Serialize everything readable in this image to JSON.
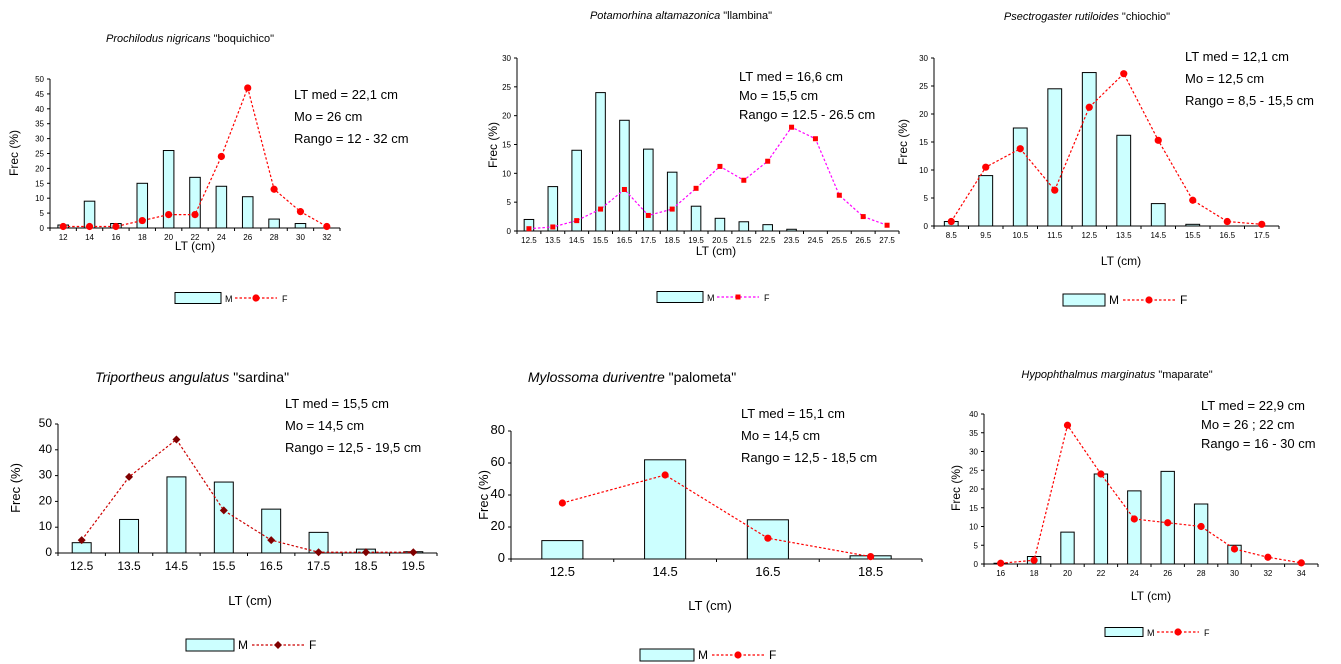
{
  "chart_data": [
    {
      "type": "bar",
      "title_italic": "Prochilodus nigricans",
      "title_common": "\"boquichico\"",
      "xlabel": "LT (cm)",
      "ylabel": "Frec (%)",
      "categories": [
        "12",
        "14",
        "16",
        "18",
        "20",
        "22",
        "24",
        "26",
        "28",
        "30",
        "32"
      ],
      "ylim": [
        0,
        50
      ],
      "yticks": [
        "0",
        "5",
        "10",
        "15",
        "20",
        "25",
        "30",
        "35",
        "40",
        "45",
        "50"
      ],
      "series": [
        {
          "name": "M",
          "kind": "bar",
          "values": [
            1,
            9,
            1.5,
            15,
            26,
            17,
            14,
            10.5,
            3,
            1.5,
            0
          ]
        },
        {
          "name": "F",
          "kind": "line",
          "marker": "circle",
          "values": [
            0.5,
            0.5,
            0.5,
            2.5,
            4.5,
            4.5,
            24,
            47,
            13,
            5.5,
            0.5
          ]
        }
      ],
      "stats": [
        "LT med = 22,1 cm",
        "Mo =  26 cm",
        "Rango = 12 - 32 cm"
      ]
    },
    {
      "type": "bar",
      "title_italic": "Potamorhina altamazonica",
      "title_common": "\"llambina\"",
      "xlabel": "LT (cm)",
      "ylabel": "Frec (%)",
      "categories": [
        "12.5",
        "13.5",
        "14.5",
        "15.5",
        "16.5",
        "17.5",
        "18.5",
        "19.5",
        "20.5",
        "21.5",
        "22.5",
        "23.5",
        "24.5",
        "25.5",
        "26.5",
        "27.5"
      ],
      "ylim": [
        0,
        30
      ],
      "yticks": [
        "0",
        "5",
        "10",
        "15",
        "20",
        "25",
        "30"
      ],
      "series": [
        {
          "name": "M",
          "kind": "bar",
          "values": [
            2,
            7.7,
            14,
            24,
            19.2,
            14.2,
            10.2,
            4.3,
            2.2,
            1.6,
            1.1,
            0.3,
            0,
            0,
            0,
            0
          ]
        },
        {
          "name": "F",
          "kind": "line",
          "marker": "square",
          "values": [
            0.4,
            0.7,
            1.8,
            3.8,
            7.2,
            2.7,
            3.8,
            7.4,
            11.2,
            8.8,
            12.1,
            18,
            16,
            6.2,
            2.5,
            1
          ]
        }
      ],
      "stats": [
        "LT med =  16,6 cm",
        "Mo = 15,5 cm",
        "Rango =  12.5 - 26.5 cm"
      ]
    },
    {
      "type": "bar",
      "title_italic": "Psectrogaster rutiloides",
      "title_common": "\"chiochio\"",
      "xlabel": "LT (cm)",
      "ylabel": "Frec (%)",
      "categories": [
        "8.5",
        "9.5",
        "10.5",
        "11.5",
        "12.5",
        "13.5",
        "14.5",
        "15.5",
        "16.5",
        "17.5"
      ],
      "ylim": [
        0,
        30
      ],
      "yticks": [
        "0",
        "5",
        "10",
        "15",
        "20",
        "25",
        "30"
      ],
      "series": [
        {
          "name": "M",
          "kind": "bar",
          "values": [
            0.8,
            9,
            17.5,
            24.5,
            27.4,
            16.2,
            4,
            0.3,
            0,
            0
          ]
        },
        {
          "name": "F",
          "kind": "line",
          "marker": "circle",
          "values": [
            0.8,
            10.5,
            13.8,
            6.4,
            21.2,
            27.2,
            15.3,
            4.6,
            0.8,
            0.3
          ]
        }
      ],
      "stats": [
        "LT med = 12,1 cm",
        "Mo =  12,5 cm",
        "Rango = 8,5 - 15,5 cm"
      ]
    },
    {
      "type": "bar",
      "title_italic": "Triportheus angulatus",
      "title_common": "\"sardina\"",
      "xlabel": "LT (cm)",
      "ylabel": "Frec (%)",
      "categories": [
        "12.5",
        "13.5",
        "14.5",
        "15.5",
        "16.5",
        "17.5",
        "18.5",
        "19.5"
      ],
      "ylim": [
        0,
        50
      ],
      "yticks": [
        "0",
        "10",
        "20",
        "30",
        "40",
        "50"
      ],
      "series": [
        {
          "name": "M",
          "kind": "bar",
          "values": [
            4,
            13,
            29.5,
            27.5,
            17,
            8,
            1.5,
            0.5
          ]
        },
        {
          "name": "F",
          "kind": "line",
          "marker": "diamond",
          "values": [
            5,
            29.5,
            44,
            16.5,
            5,
            0.3,
            0.3,
            0.3
          ]
        }
      ],
      "stats": [
        "LT med = 15,5 cm",
        "Mo =  14,5 cm",
        "Rango = 12,5 - 19,5 cm"
      ]
    },
    {
      "type": "bar",
      "title_italic": "Mylossoma duriventre",
      "title_common": "\"palometa\"",
      "xlabel": "LT (cm)",
      "ylabel": "Frec (%)",
      "categories": [
        "12.5",
        "14.5",
        "16.5",
        "18.5"
      ],
      "ylim": [
        0,
        80
      ],
      "yticks": [
        "0",
        "20",
        "40",
        "60",
        "80"
      ],
      "series": [
        {
          "name": "M",
          "kind": "bar",
          "values": [
            11.5,
            62,
            24.5,
            2
          ]
        },
        {
          "name": "F",
          "kind": "line",
          "marker": "circle",
          "values": [
            35,
            52.5,
            13,
            1.5
          ]
        }
      ],
      "stats": [
        "LT med = 15,1 cm",
        "Mo =  14,5 cm",
        "Rango = 12,5 - 18,5 cm"
      ]
    },
    {
      "type": "bar",
      "title_italic": "Hypophthalmus marginatus",
      "title_common": "\"maparate\"",
      "xlabel": "LT (cm)",
      "ylabel": "Frec (%)",
      "categories": [
        "16",
        "18",
        "20",
        "22",
        "24",
        "26",
        "28",
        "30",
        "32",
        "34"
      ],
      "ylim": [
        0,
        40
      ],
      "yticks": [
        "0",
        "5",
        "10",
        "15",
        "20",
        "25",
        "30",
        "35",
        "40"
      ],
      "series": [
        {
          "name": "M",
          "kind": "bar",
          "values": [
            0.2,
            2,
            8.5,
            24,
            19.5,
            24.7,
            16,
            5,
            0,
            0
          ]
        },
        {
          "name": "F",
          "kind": "line",
          "marker": "circle",
          "values": [
            0.2,
            1,
            37,
            24,
            12,
            11,
            10,
            4,
            1.8,
            0.3
          ]
        }
      ],
      "stats": [
        "LT med = 22,9 cm",
        "Mo =  26 ; 22 cm",
        "Rango = 16 - 30 cm"
      ]
    }
  ],
  "colors": {
    "bar_fill": "#ccffff",
    "bar_stroke": "#000000",
    "line_red": "#ff0000",
    "marker_red": "#ff0000",
    "line_magenta": "#ff00ff",
    "marker_diamond": "#800000",
    "line_dotted_red": "#cc0000"
  }
}
